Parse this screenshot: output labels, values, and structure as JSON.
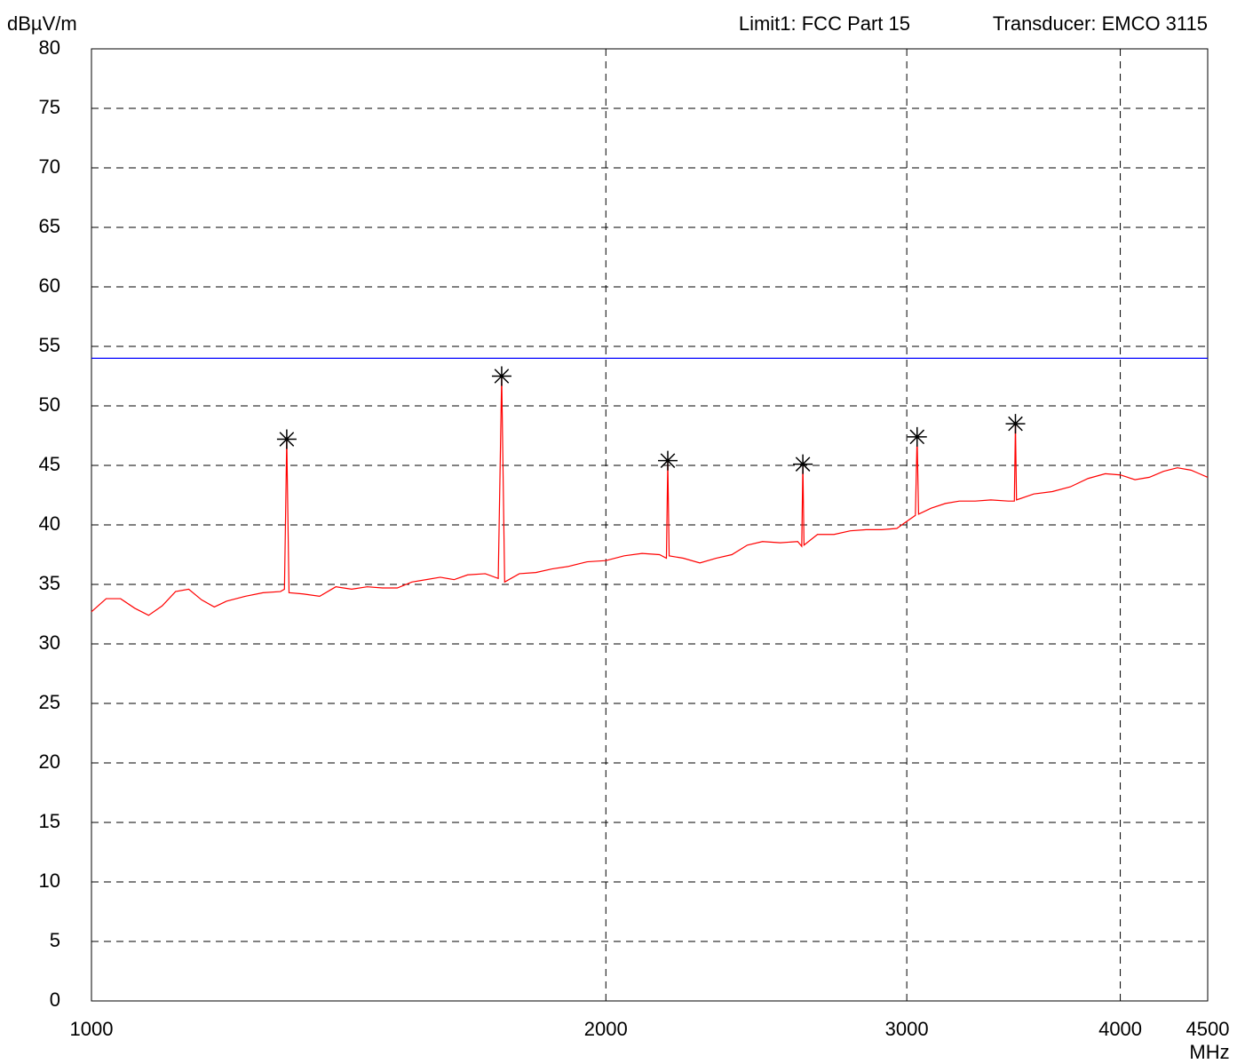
{
  "chart_data": {
    "type": "line",
    "y_label": "dBµV/m",
    "x_label": "MHz",
    "header_limit": "Limit1: FCC Part 15",
    "header_transducer": "Transducer: EMCO 3115",
    "x_log": true,
    "grid": true,
    "xlim": [
      1000,
      4500
    ],
    "xticks": [
      1000,
      2000,
      3000,
      4000,
      4500
    ],
    "ylim": [
      0,
      80
    ],
    "yticks": [
      0,
      5,
      10,
      15,
      20,
      25,
      30,
      35,
      40,
      45,
      50,
      55,
      60,
      65,
      70,
      75,
      80
    ],
    "limit": {
      "value": 54,
      "color": "#0000ff"
    },
    "series": [
      {
        "color": "#ff0000",
        "x": [
          1000,
          1020,
          1040,
          1060,
          1080,
          1100,
          1120,
          1140,
          1160,
          1180,
          1200,
          1230,
          1260,
          1290,
          1297,
          1301,
          1305,
          1330,
          1360,
          1390,
          1420,
          1450,
          1480,
          1510,
          1540,
          1570,
          1600,
          1630,
          1660,
          1700,
          1730,
          1738,
          1745,
          1780,
          1820,
          1860,
          1900,
          1950,
          2000,
          2050,
          2100,
          2150,
          2170,
          2174,
          2178,
          2220,
          2270,
          2320,
          2370,
          2420,
          2470,
          2530,
          2590,
          2604,
          2608,
          2612,
          2660,
          2720,
          2780,
          2840,
          2900,
          2960,
          3000,
          3035,
          3042,
          3048,
          3100,
          3160,
          3220,
          3290,
          3360,
          3440,
          3468,
          3473,
          3478,
          3560,
          3650,
          3740,
          3830,
          3920,
          4000,
          4080,
          4160,
          4240,
          4320,
          4400,
          4450,
          4500
        ],
        "values": [
          32.7,
          33.8,
          33.8,
          33.0,
          32.4,
          33.2,
          34.4,
          34.6,
          33.7,
          33.1,
          33.6,
          34.0,
          34.3,
          34.4,
          34.6,
          47.2,
          34.3,
          34.2,
          34.0,
          34.8,
          34.6,
          34.8,
          34.7,
          34.7,
          35.2,
          35.4,
          35.6,
          35.4,
          35.8,
          35.9,
          35.5,
          52.5,
          35.2,
          35.9,
          36.0,
          36.3,
          36.5,
          36.9,
          37.0,
          37.4,
          37.6,
          37.5,
          37.2,
          45.4,
          37.4,
          37.2,
          36.8,
          37.2,
          37.5,
          38.3,
          38.6,
          38.5,
          38.6,
          38.2,
          45.1,
          38.3,
          39.2,
          39.2,
          39.5,
          39.6,
          39.6,
          39.7,
          40.3,
          40.8,
          47.4,
          40.9,
          41.4,
          41.8,
          42.0,
          42.0,
          42.1,
          42.0,
          42.0,
          48.5,
          42.1,
          42.6,
          42.8,
          43.2,
          43.9,
          44.3,
          44.2,
          43.8,
          44.0,
          44.5,
          44.8,
          44.6,
          44.3,
          44.0
        ]
      }
    ],
    "markers": {
      "color": "#000000",
      "x": [
        1301,
        1738,
        2174,
        2608,
        3042,
        3473
      ],
      "values": [
        47.2,
        52.5,
        45.4,
        45.1,
        47.4,
        48.5
      ]
    }
  }
}
